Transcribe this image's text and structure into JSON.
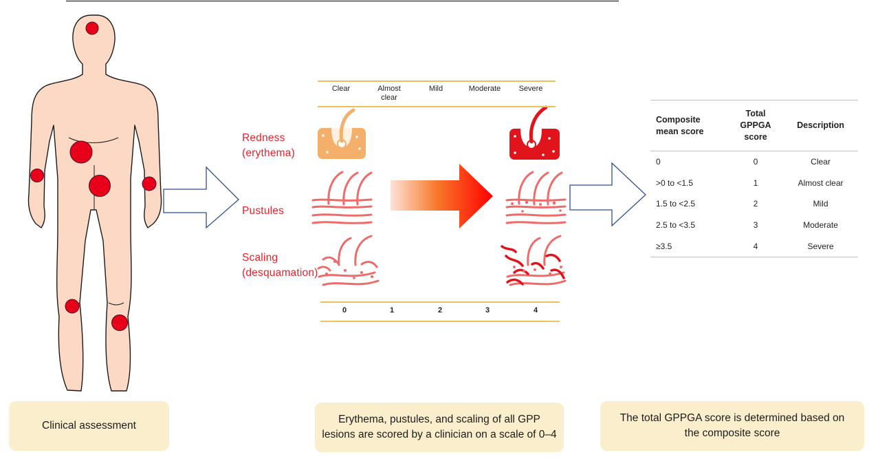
{
  "assessment": {
    "row_labels": {
      "redness_line1": "Redness",
      "redness_line2": "(erythema)",
      "pustules": "Pustules",
      "scaling_line1": "Scaling",
      "scaling_line2": "(desquamation)"
    },
    "severity_headers": [
      {
        "line1": "Clear",
        "line2": ""
      },
      {
        "line1": "Almost",
        "line2": "clear"
      },
      {
        "line1": "Mild",
        "line2": ""
      },
      {
        "line1": "Moderate",
        "line2": ""
      },
      {
        "line1": "Severe",
        "line2": ""
      }
    ],
    "scores": [
      "0",
      "1",
      "2",
      "3",
      "4"
    ]
  },
  "gppga_table": {
    "headers": {
      "composite_line1": "Composite",
      "composite_line2": "mean score",
      "total_line1": "Total",
      "total_line2": "GPPGA",
      "total_line3": "score",
      "description": "Description"
    },
    "rows": [
      {
        "composite": "0",
        "total": "0",
        "description": "Clear"
      },
      {
        "composite": ">0 to <1.5",
        "total": "1",
        "description": "Almost clear"
      },
      {
        "composite": "1.5 to <2.5",
        "total": "2",
        "description": "Mild"
      },
      {
        "composite": "2.5 to <3.5",
        "total": "3",
        "description": "Moderate"
      },
      {
        "composite": "≥3.5",
        "total": "4",
        "description": "Severe"
      }
    ]
  },
  "captions": {
    "clinical": "Clinical assessment",
    "scoring": "Erythema, pustules, and scaling of all GPP lesions are scored by a clinician on a scale of 0–4",
    "total": "The total GPPGA score is determined based on the composite score"
  },
  "colors": {
    "skin": "#fbd9c4",
    "lesion": "#e8001b",
    "label_red": "#e8222a",
    "gold_rule": "#e7c25a",
    "caption_bg": "#fbeecd",
    "arrow_outline": "#2f4f8f",
    "gradient_start": "#fde3d8",
    "gradient_end": "#ff0000",
    "mild_skin": "#f4b06a",
    "severe_skin": "#e0141a",
    "pustule_lines": "#f06a6a"
  }
}
